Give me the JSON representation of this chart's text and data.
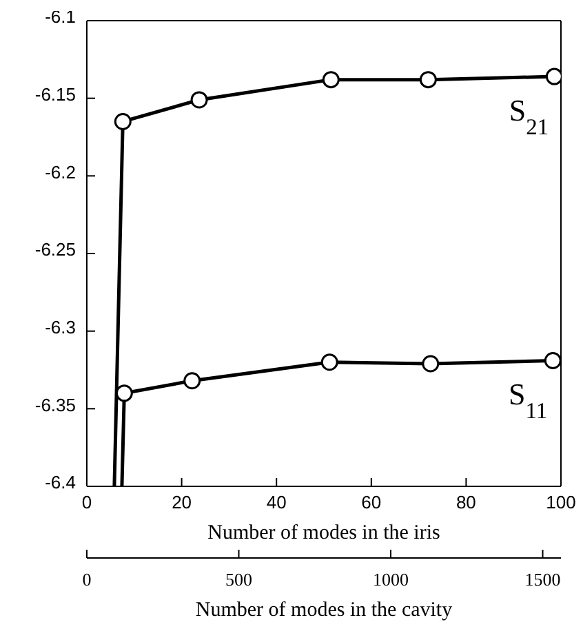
{
  "chart_data": {
    "type": "line",
    "xlabel": "Number of modes in the iris",
    "x2label": "Number of modes in the cavity",
    "xlim": [
      0,
      100
    ],
    "xticks": [
      0,
      20,
      40,
      60,
      80,
      100
    ],
    "x2lim": [
      0,
      1560
    ],
    "x2ticks": [
      0,
      500,
      1000,
      1500
    ],
    "ylim": [
      -6.4,
      -6.1
    ],
    "yticks": [
      -6.4,
      -6.35,
      -6.3,
      -6.25,
      -6.2,
      -6.15,
      -6.1
    ],
    "series": [
      {
        "color": "#000000",
        "x": [
          5.8,
          7.6,
          23.7,
          51.5,
          72,
          98.6
        ],
        "values": [
          -6.4,
          -6.165,
          -6.151,
          -6.138,
          -6.138,
          -6.136
        ]
      },
      {
        "color": "#000000",
        "x": [
          7.4,
          7.9,
          22.2,
          51.2,
          72.5,
          98.3
        ],
        "values": [
          -6.4,
          -6.34,
          -6.332,
          -6.32,
          -6.321,
          -6.319
        ]
      }
    ],
    "annotations": [
      "S$_{21}$",
      "S$_{11}$"
    ],
    "marker": "circle",
    "line_style": "solid",
    "legend": false
  }
}
